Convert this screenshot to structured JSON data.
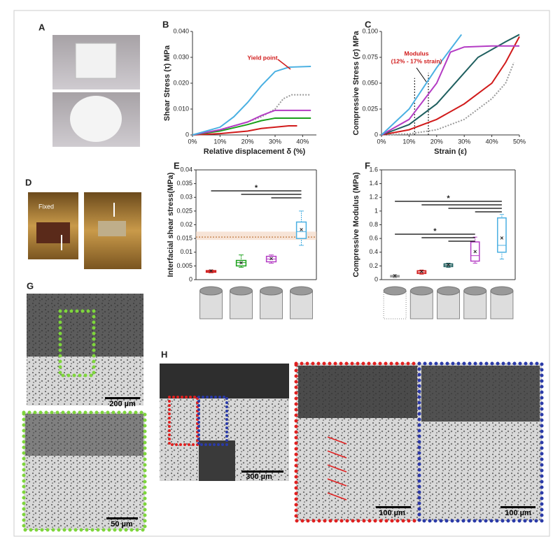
{
  "panels": [
    "A",
    "B",
    "C",
    "D",
    "E",
    "F",
    "G",
    "H"
  ],
  "photo_label": "Fixed",
  "scale_bars": [
    "200 µm",
    "50 µm",
    "300 µm",
    "100 µm",
    "100 µm"
  ],
  "chart_data": [
    {
      "type": "line",
      "ylabel": "Shear Stress (τ) MPa",
      "xlabel": "Relative displacement δ (%)",
      "annotation": "Yield point",
      "xlim": [
        0,
        45
      ],
      "xticks": [
        {
          "value": 0,
          "label": "0%"
        },
        {
          "value": 10,
          "label": "10%"
        },
        {
          "value": 20,
          "label": "20%"
        },
        {
          "value": 30,
          "label": "30%"
        },
        {
          "value": 40,
          "label": "40%"
        }
      ],
      "ylim": [
        0,
        0.04
      ],
      "yticks": [
        0,
        {
          "value": 0.01,
          "label": "0.010"
        },
        {
          "value": 0.02,
          "label": "0.020"
        },
        {
          "value": 0.03,
          "label": "0.030"
        },
        {
          "value": 0.04,
          "label": "0.040"
        }
      ],
      "series": [
        {
          "color": "#9a9a9a",
          "dashed": true,
          "x": [
            0,
            10,
            20,
            25,
            30,
            33,
            36,
            43
          ],
          "values": [
            0,
            0.002,
            0.005,
            0.007,
            0.01,
            0.014,
            0.0155,
            0.0155
          ]
        },
        {
          "color": "#d11b1b",
          "x": [
            0,
            10,
            20,
            25,
            30,
            35,
            38
          ],
          "values": [
            0,
            0.0005,
            0.0015,
            0.0025,
            0.003,
            0.0035,
            0.0035
          ]
        },
        {
          "color": "#1aa01a",
          "x": [
            0,
            10,
            20,
            25,
            30,
            35,
            43
          ],
          "values": [
            0,
            0.0015,
            0.004,
            0.0055,
            0.0065,
            0.0065,
            0.0065
          ]
        },
        {
          "color": "#b43cc4",
          "x": [
            0,
            10,
            20,
            25,
            30,
            35,
            43
          ],
          "values": [
            0,
            0.002,
            0.005,
            0.0075,
            0.0095,
            0.0095,
            0.0095
          ]
        },
        {
          "color": "#4ab0e2",
          "x": [
            0,
            10,
            15,
            20,
            25,
            30,
            35,
            43
          ],
          "values": [
            0,
            0.003,
            0.007,
            0.0125,
            0.019,
            0.0245,
            0.0262,
            0.0265
          ]
        }
      ]
    },
    {
      "type": "line",
      "ylabel": "Compressive Stress (σ) MPa",
      "xlabel": "Strain (ε)",
      "annotation": [
        "Modulus",
        "(12% - 17% strain)"
      ],
      "strain_range": [
        12,
        17
      ],
      "xlim": [
        0,
        50
      ],
      "xticks": [
        {
          "value": 0,
          "label": "0%"
        },
        {
          "value": 10,
          "label": "10%"
        },
        {
          "value": 20,
          "label": "20%"
        },
        {
          "value": 30,
          "label": "30%"
        },
        {
          "value": 40,
          "label": "40%"
        },
        {
          "value": 50,
          "label": "50%"
        }
      ],
      "ylim": [
        0,
        0.1
      ],
      "yticks": [
        0,
        0.025,
        {
          "value": 0.05,
          "label": "0.050"
        },
        0.075,
        {
          "value": 0.1,
          "label": "0.100"
        }
      ],
      "series": [
        {
          "color": "#9a9a9a",
          "dashed": true,
          "x": [
            0,
            10,
            20,
            30,
            40,
            45,
            48
          ],
          "values": [
            0,
            0.001,
            0.005,
            0.015,
            0.035,
            0.05,
            0.07
          ]
        },
        {
          "color": "#d11b1b",
          "x": [
            0,
            10,
            20,
            30,
            40,
            45,
            50
          ],
          "values": [
            0,
            0.005,
            0.015,
            0.03,
            0.05,
            0.07,
            0.095
          ]
        },
        {
          "color": "#1f5f5f",
          "x": [
            0,
            10,
            20,
            25,
            30,
            35,
            45,
            50
          ],
          "values": [
            0,
            0.01,
            0.03,
            0.045,
            0.06,
            0.075,
            0.09,
            0.097
          ]
        },
        {
          "color": "#b43cc4",
          "x": [
            0,
            10,
            20,
            25,
            30,
            40,
            50
          ],
          "values": [
            0,
            0.015,
            0.05,
            0.08,
            0.085,
            0.086,
            0.086
          ]
        },
        {
          "color": "#4ab0e2",
          "x": [
            0,
            10,
            20,
            29
          ],
          "values": [
            0,
            0.025,
            0.065,
            0.097
          ]
        }
      ]
    },
    {
      "type": "box",
      "ylabel": "Interfacial shear stress(MPa)",
      "significance_labels": [
        "*"
      ],
      "reference": {
        "value": 0.0155,
        "band": [
          0.0145,
          0.0175
        ]
      },
      "ylim": [
        0,
        0.04
      ],
      "yticks": [
        0,
        0.005,
        0.01,
        0.015,
        0.02,
        0.025,
        0.03,
        0.035,
        0.04
      ],
      "boxes": [
        {
          "color": "#d11b1b",
          "min": 0.0025,
          "q1": 0.0027,
          "median": 0.003,
          "q3": 0.0033,
          "max": 0.0035,
          "mean": 0.003
        },
        {
          "color": "#1aa01a",
          "min": 0.0045,
          "q1": 0.005,
          "median": 0.0062,
          "q3": 0.007,
          "max": 0.009,
          "mean": 0.006
        },
        {
          "color": "#b43cc4",
          "min": 0.006,
          "q1": 0.0065,
          "median": 0.0075,
          "q3": 0.0085,
          "max": 0.009,
          "mean": 0.0075
        },
        {
          "color": "#4ab0e2",
          "min": 0.0125,
          "q1": 0.015,
          "median": 0.0175,
          "q3": 0.021,
          "max": 0.025,
          "mean": 0.018
        }
      ]
    },
    {
      "type": "box",
      "ylabel": "Compressive Modulus (MPa)",
      "significance_labels": [
        "*",
        "*"
      ],
      "ylim": [
        0,
        1.6
      ],
      "yticks": [
        0,
        0.2,
        0.4,
        0.6,
        0.8,
        1,
        1.2,
        1.4,
        1.6
      ],
      "boxes": [
        {
          "color": "#9a9a9a",
          "min": 0.03,
          "q1": 0.04,
          "median": 0.05,
          "q3": 0.06,
          "max": 0.07,
          "mean": 0.05
        },
        {
          "color": "#d11b1b",
          "min": 0.08,
          "q1": 0.09,
          "median": 0.11,
          "q3": 0.13,
          "max": 0.14,
          "mean": 0.11
        },
        {
          "color": "#1f5f5f",
          "min": 0.18,
          "q1": 0.19,
          "median": 0.21,
          "q3": 0.23,
          "max": 0.24,
          "mean": 0.21
        },
        {
          "color": "#b43cc4",
          "min": 0.24,
          "q1": 0.27,
          "median": 0.35,
          "q3": 0.55,
          "max": 0.62,
          "mean": 0.4
        },
        {
          "color": "#4ab0e2",
          "min": 0.3,
          "q1": 0.4,
          "median": 0.5,
          "q3": 0.9,
          "max": 0.95,
          "mean": 0.6
        }
      ]
    }
  ]
}
